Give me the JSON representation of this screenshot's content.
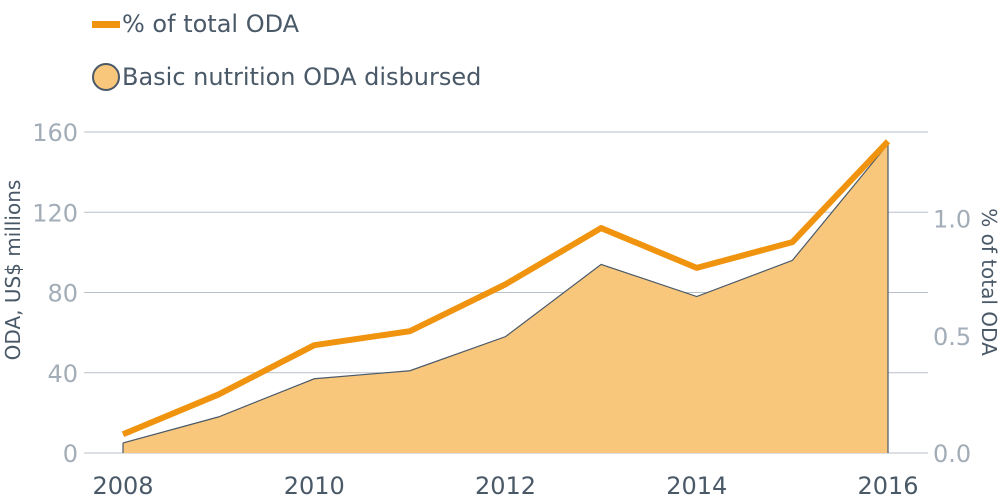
{
  "chart_data": {
    "type": "area",
    "x": [
      2008,
      2009,
      2010,
      2011,
      2012,
      2013,
      2014,
      2015,
      2016
    ],
    "x_tick_labels": [
      "2008",
      "2010",
      "2012",
      "2014",
      "2016"
    ],
    "series": [
      {
        "name": "Basic nutrition ODA disbursed",
        "type": "area",
        "axis": "left",
        "values": [
          5,
          18,
          37,
          41,
          58,
          94,
          78,
          96,
          154
        ]
      },
      {
        "name": "% of total ODA",
        "type": "line",
        "axis": "right",
        "values": [
          0.08,
          0.25,
          0.46,
          0.52,
          0.72,
          0.96,
          0.79,
          0.9,
          1.33
        ]
      }
    ],
    "ylabel": "ODA, US$ millions",
    "ylabel_right": "% of total ODA",
    "ylim": [
      0,
      160
    ],
    "ylim_right": [
      0,
      1.37
    ],
    "y_ticks": [
      "0",
      "40",
      "80",
      "120",
      "160"
    ],
    "y_ticks_right": [
      "0.0",
      "0.5",
      "1.0"
    ],
    "grid": true,
    "legend_position": "top-left",
    "colors": {
      "line": "#f0930e",
      "area_fill": "#f9c77c",
      "area_stroke": "#4a5968",
      "grid": "#b9c0c8",
      "tick_text": "#a3adb8",
      "label_text": "#4a5968"
    }
  }
}
